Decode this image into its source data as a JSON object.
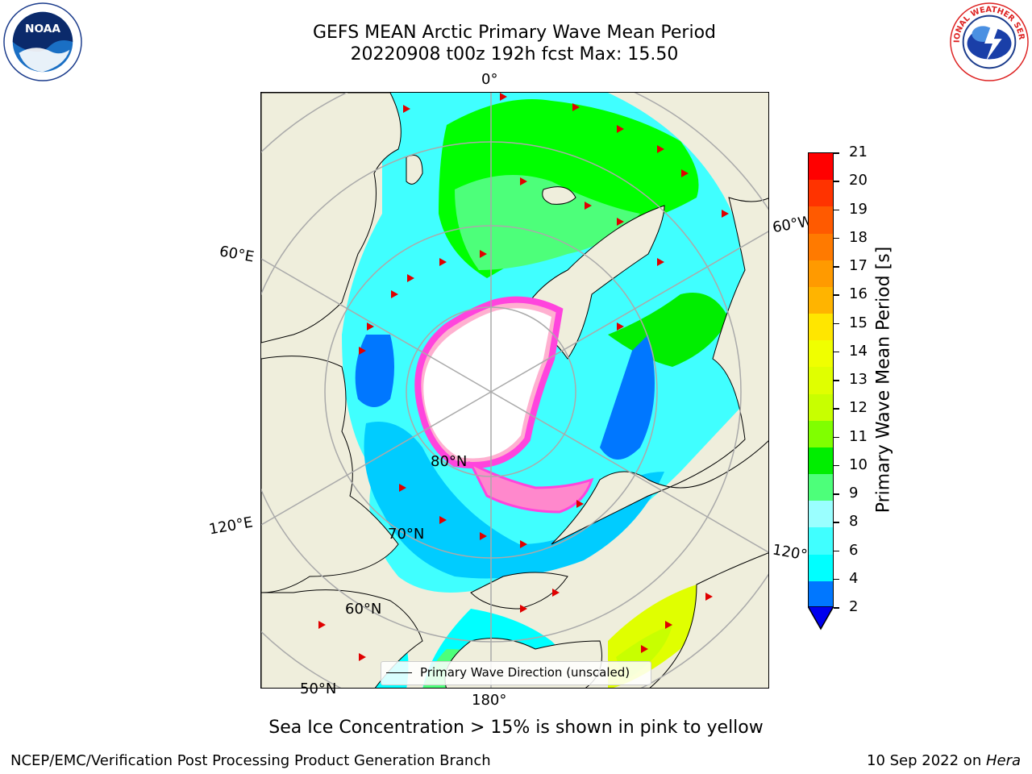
{
  "header": {
    "title_line1": "GEFS MEAN Arctic Primary Wave Mean Period",
    "title_line2": "20220908 t00z 192h fcst   Max: 15.50"
  },
  "logos": {
    "left": "NOAA",
    "right": "NATIONAL WEATHER SERVICE"
  },
  "map": {
    "lon_labels": [
      "0°",
      "60°W",
      "60°E",
      "120°E",
      "120°",
      "180°"
    ],
    "lat_labels": [
      "80°N",
      "70°N",
      "60°N",
      "50°N"
    ],
    "legend_label": "Primary Wave Direction (unscaled)",
    "colors": {
      "land": "#efeedc",
      "ice": "#ffffff",
      "ocean_low": "#00ffff",
      "grid": "#aaaaaa",
      "arrow": "#e00000"
    }
  },
  "colorbar": {
    "label": "Primary Wave Mean Period [s]",
    "ticks": [
      "21",
      "20",
      "19",
      "18",
      "17",
      "16",
      "15",
      "14",
      "13",
      "12",
      "11",
      "10",
      "9",
      "8",
      "6",
      "4",
      "2"
    ],
    "colors": [
      "#ff0000",
      "#ff3300",
      "#ff5a00",
      "#ff7a00",
      "#ff9a00",
      "#ffb400",
      "#ffe600",
      "#f0ff00",
      "#e0ff00",
      "#c8ff00",
      "#80ff00",
      "#00ee00",
      "#4dff7a",
      "#9affff",
      "#40ffff",
      "#00ffff",
      "#0077ff"
    ],
    "under_color": "#0000ee"
  },
  "subtitle": "Sea Ice Concentration > 15% is shown in pink to yellow",
  "footer": {
    "left": "NCEP/EMC/Verification Post Processing Product Generation Branch",
    "right_date": "10 Sep 2022 on ",
    "right_machine": "Hera"
  }
}
